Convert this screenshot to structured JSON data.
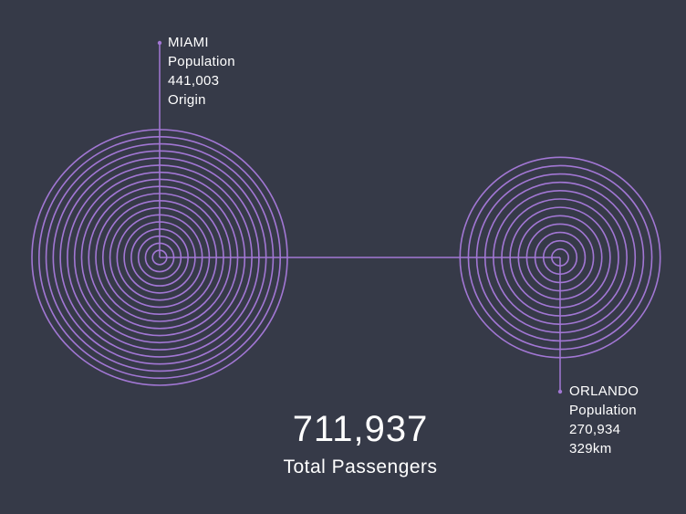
{
  "colors": {
    "background": "#363a48",
    "accent": "#a277d4",
    "text": "#ffffff"
  },
  "origin": {
    "name": "MIAMI",
    "population_label": "Population",
    "population": "441,003",
    "role": "Origin",
    "population_value": 441003
  },
  "destination": {
    "name": "ORLANDO",
    "population_label": "Population",
    "population": "270,934",
    "distance": "329km",
    "population_value": 270934
  },
  "summary": {
    "total": "711,937",
    "total_label": "Total Passengers"
  }
}
